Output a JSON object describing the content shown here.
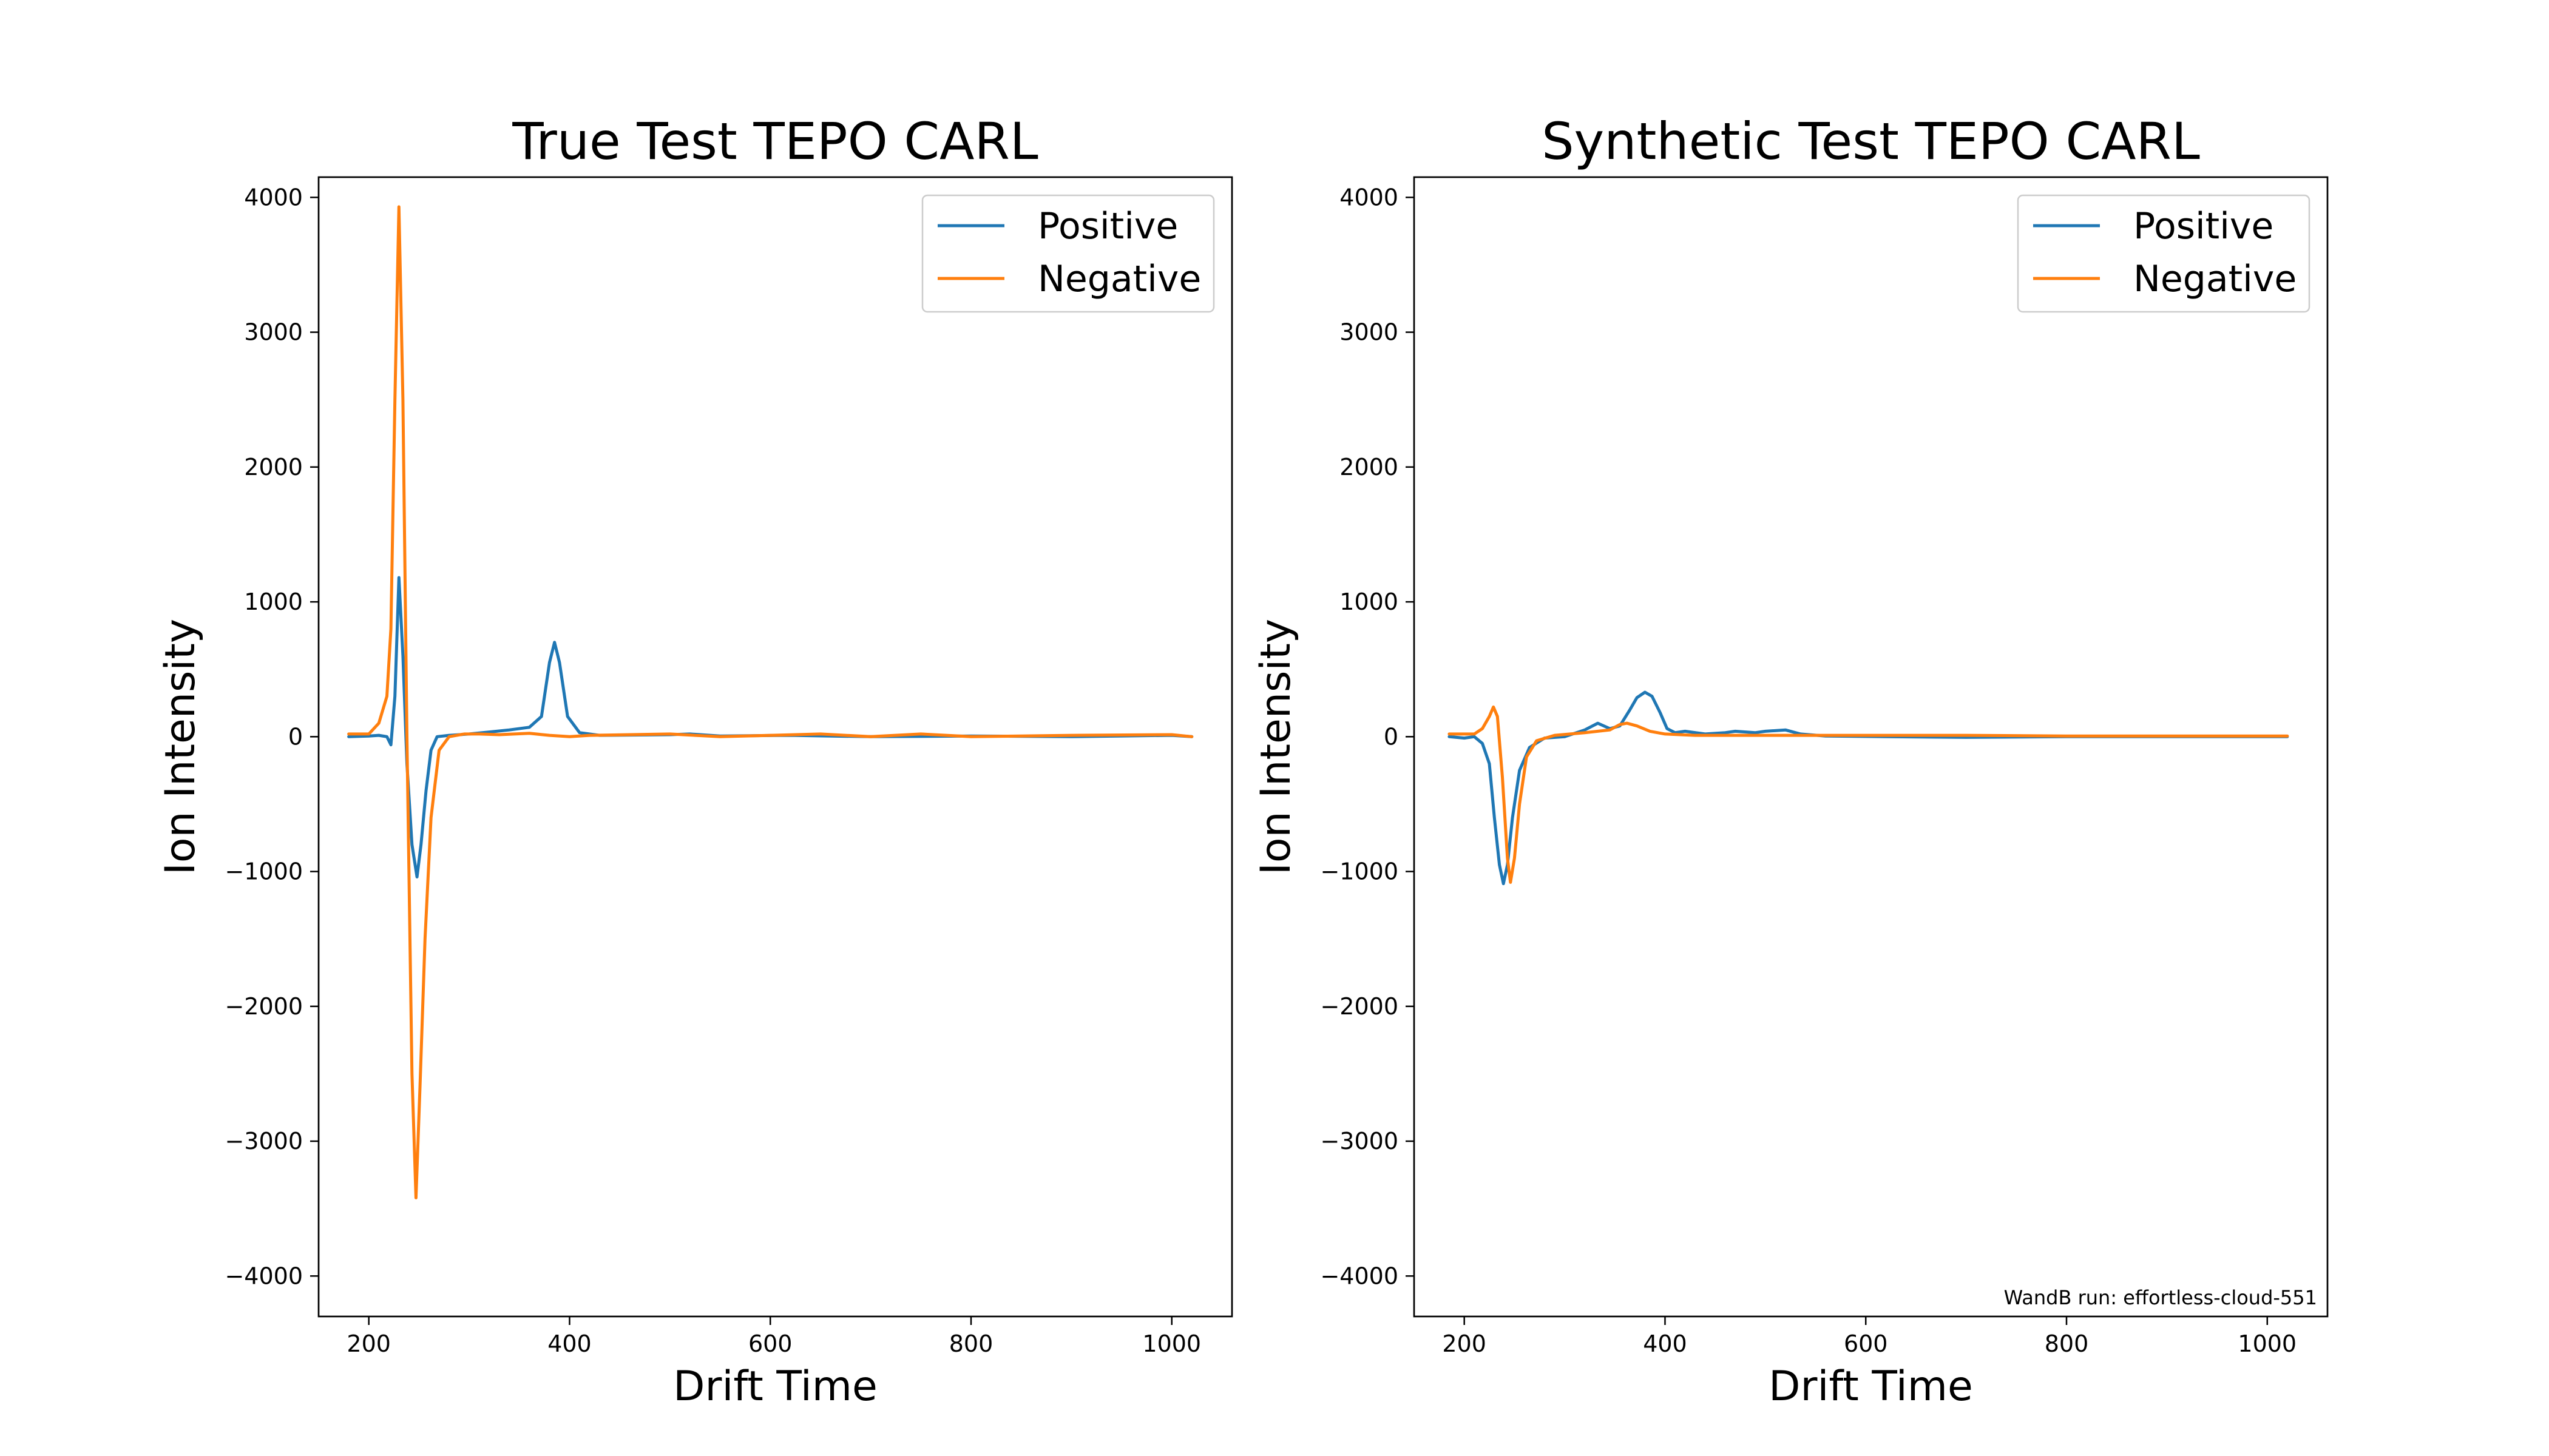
{
  "chart_data": [
    {
      "type": "line",
      "title": "True Test TEPO CARL",
      "xlabel": "Drift Time",
      "ylabel": "Ion Intensity",
      "xlim": [
        150,
        1060
      ],
      "ylim": [
        -4300,
        4150
      ],
      "xticks": [
        200,
        400,
        600,
        800,
        1000
      ],
      "yticks": [
        -4000,
        -3000,
        -2000,
        -1000,
        0,
        1000,
        2000,
        3000,
        4000
      ],
      "xtick_labels": [
        "200",
        "400",
        "600",
        "800",
        "1000"
      ],
      "ytick_labels": [
        "−4000",
        "−3000",
        "−2000",
        "−1000",
        "0",
        "1000",
        "2000",
        "3000",
        "4000"
      ],
      "legend": "top-right",
      "grid": false,
      "series": [
        {
          "name": "Positive",
          "color": "#1f77b4",
          "points": [
            [
              180,
              0
            ],
            [
              200,
              5
            ],
            [
              210,
              10
            ],
            [
              218,
              0
            ],
            [
              222,
              -60
            ],
            [
              226,
              300
            ],
            [
              230,
              1180
            ],
            [
              234,
              600
            ],
            [
              238,
              -200
            ],
            [
              243,
              -800
            ],
            [
              248,
              -1040
            ],
            [
              252,
              -800
            ],
            [
              257,
              -400
            ],
            [
              262,
              -100
            ],
            [
              268,
              0
            ],
            [
              280,
              10
            ],
            [
              300,
              20
            ],
            [
              320,
              35
            ],
            [
              340,
              50
            ],
            [
              360,
              70
            ],
            [
              372,
              150
            ],
            [
              380,
              550
            ],
            [
              385,
              700
            ],
            [
              390,
              550
            ],
            [
              398,
              150
            ],
            [
              410,
              30
            ],
            [
              430,
              10
            ],
            [
              500,
              15
            ],
            [
              520,
              20
            ],
            [
              550,
              5
            ],
            [
              620,
              10
            ],
            [
              700,
              0
            ],
            [
              800,
              5
            ],
            [
              900,
              0
            ],
            [
              1000,
              10
            ],
            [
              1020,
              0
            ]
          ]
        },
        {
          "name": "Negative",
          "color": "#ff7f0e",
          "points": [
            [
              180,
              20
            ],
            [
              200,
              20
            ],
            [
              210,
              100
            ],
            [
              218,
              300
            ],
            [
              222,
              800
            ],
            [
              226,
              2500
            ],
            [
              230,
              3930
            ],
            [
              234,
              2500
            ],
            [
              238,
              0
            ],
            [
              243,
              -2500
            ],
            [
              247,
              -3420
            ],
            [
              251,
              -2600
            ],
            [
              256,
              -1500
            ],
            [
              262,
              -600
            ],
            [
              270,
              -100
            ],
            [
              280,
              0
            ],
            [
              295,
              20
            ],
            [
              310,
              20
            ],
            [
              330,
              15
            ],
            [
              360,
              25
            ],
            [
              380,
              10
            ],
            [
              400,
              0
            ],
            [
              420,
              10
            ],
            [
              500,
              20
            ],
            [
              550,
              0
            ],
            [
              600,
              10
            ],
            [
              650,
              20
            ],
            [
              700,
              0
            ],
            [
              750,
              20
            ],
            [
              800,
              0
            ],
            [
              900,
              10
            ],
            [
              1000,
              15
            ],
            [
              1020,
              0
            ]
          ]
        }
      ]
    },
    {
      "type": "line",
      "title": "Synthetic Test TEPO CARL",
      "xlabel": "Drift Time",
      "ylabel": "Ion Intensity",
      "xlim": [
        150,
        1060
      ],
      "ylim": [
        -4300,
        4150
      ],
      "xticks": [
        200,
        400,
        600,
        800,
        1000
      ],
      "yticks": [
        -4000,
        -3000,
        -2000,
        -1000,
        0,
        1000,
        2000,
        3000,
        4000
      ],
      "xtick_labels": [
        "200",
        "400",
        "600",
        "800",
        "1000"
      ],
      "ytick_labels": [
        "−4000",
        "−3000",
        "−2000",
        "−1000",
        "0",
        "1000",
        "2000",
        "3000",
        "4000"
      ],
      "legend": "top-right",
      "grid": false,
      "annotation": "WandB run: effortless-cloud-551",
      "series": [
        {
          "name": "Positive",
          "color": "#1f77b4",
          "points": [
            [
              185,
              0
            ],
            [
              200,
              -10
            ],
            [
              210,
              0
            ],
            [
              218,
              -50
            ],
            [
              225,
              -200
            ],
            [
              230,
              -600
            ],
            [
              235,
              -950
            ],
            [
              239,
              -1090
            ],
            [
              243,
              -950
            ],
            [
              248,
              -600
            ],
            [
              255,
              -250
            ],
            [
              265,
              -80
            ],
            [
              280,
              -10
            ],
            [
              300,
              0
            ],
            [
              320,
              50
            ],
            [
              333,
              100
            ],
            [
              345,
              60
            ],
            [
              355,
              80
            ],
            [
              365,
              200
            ],
            [
              372,
              290
            ],
            [
              380,
              330
            ],
            [
              387,
              300
            ],
            [
              395,
              180
            ],
            [
              402,
              60
            ],
            [
              410,
              30
            ],
            [
              420,
              40
            ],
            [
              440,
              20
            ],
            [
              460,
              30
            ],
            [
              470,
              40
            ],
            [
              490,
              30
            ],
            [
              500,
              40
            ],
            [
              520,
              50
            ],
            [
              535,
              20
            ],
            [
              560,
              5
            ],
            [
              620,
              0
            ],
            [
              700,
              -5
            ],
            [
              800,
              0
            ],
            [
              900,
              0
            ],
            [
              1020,
              0
            ]
          ]
        },
        {
          "name": "Negative",
          "color": "#ff7f0e",
          "points": [
            [
              185,
              20
            ],
            [
              210,
              20
            ],
            [
              218,
              60
            ],
            [
              225,
              150
            ],
            [
              229,
              220
            ],
            [
              233,
              150
            ],
            [
              238,
              -300
            ],
            [
              243,
              -900
            ],
            [
              246,
              -1080
            ],
            [
              250,
              -900
            ],
            [
              255,
              -500
            ],
            [
              262,
              -150
            ],
            [
              272,
              -30
            ],
            [
              290,
              10
            ],
            [
              320,
              30
            ],
            [
              345,
              50
            ],
            [
              355,
              90
            ],
            [
              362,
              100
            ],
            [
              372,
              80
            ],
            [
              385,
              40
            ],
            [
              400,
              20
            ],
            [
              430,
              10
            ],
            [
              500,
              10
            ],
            [
              600,
              10
            ],
            [
              700,
              10
            ],
            [
              800,
              5
            ],
            [
              900,
              5
            ],
            [
              1020,
              5
            ]
          ]
        }
      ]
    }
  ]
}
